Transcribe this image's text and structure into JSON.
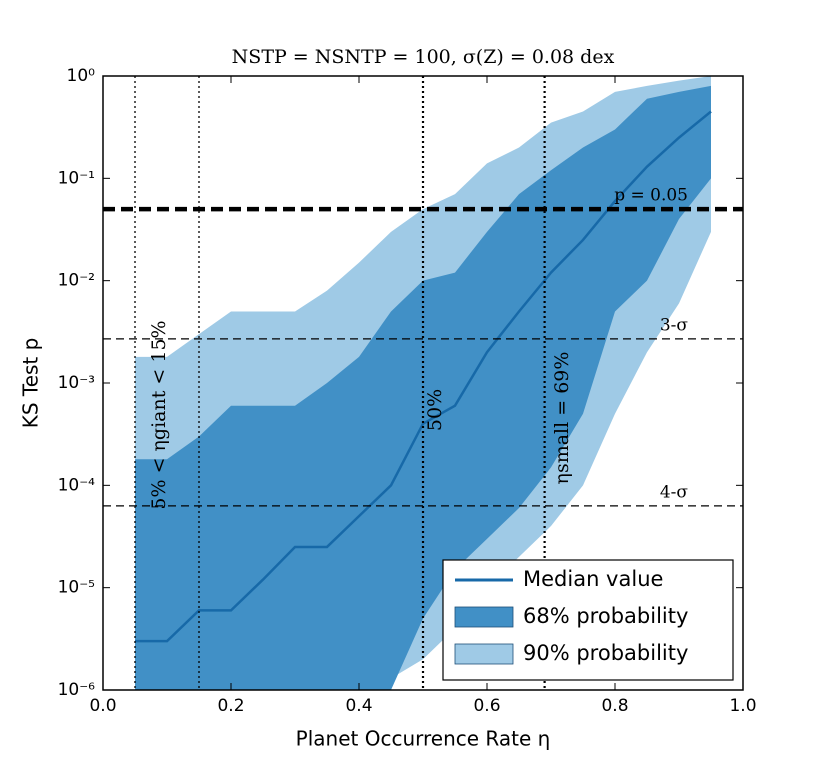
{
  "chart_data": {
    "type": "line",
    "title": "NSTP = NSNTP = 100, σ(Z) = 0.08 dex",
    "xlabel": "Planet Occurrence Rate η",
    "ylabel": "KS Test p",
    "log_y": true,
    "legend": "lower right",
    "xlim": [
      0,
      1
    ],
    "ylim": [
      1e-06,
      1
    ],
    "xticks": [
      {
        "value": 0,
        "label": "0.0"
      },
      0.2,
      0.4,
      0.6,
      0.8,
      {
        "value": 1,
        "label": "1.0"
      }
    ],
    "yticks": [
      {
        "value": 1e-06,
        "label": "10⁻⁶"
      },
      {
        "value": 1e-05,
        "label": "10⁻⁵"
      },
      {
        "value": 0.0001,
        "label": "10⁻⁴"
      },
      {
        "value": 0.001,
        "label": "10⁻³"
      },
      {
        "value": 0.01,
        "label": "10⁻²"
      },
      {
        "value": 0.1,
        "label": "10⁻¹"
      },
      {
        "value": 1,
        "label": "10⁰"
      }
    ],
    "x": [
      0.05,
      0.1,
      0.15,
      0.2,
      0.25,
      0.3,
      0.35,
      0.4,
      0.45,
      0.5,
      0.55,
      0.6,
      0.65,
      0.7,
      0.75,
      0.8,
      0.85,
      0.9,
      0.95
    ],
    "bands": [
      {
        "name": "90% probability",
        "color": "#9fcae6",
        "upper": [
          0.0018,
          0.0018,
          0.003,
          0.005,
          0.005,
          0.005,
          0.008,
          0.015,
          0.03,
          0.05,
          0.07,
          0.14,
          0.2,
          0.35,
          0.45,
          0.7,
          0.8,
          0.9,
          1
        ],
        "lower": [
          1e-06,
          1e-06,
          1e-06,
          1e-06,
          1e-06,
          1e-06,
          1e-06,
          1.3e-06,
          1.3e-06,
          2e-06,
          4e-06,
          1e-05,
          2e-05,
          4e-05,
          0.0001,
          0.0005,
          0.002,
          0.006,
          0.03
        ]
      },
      {
        "name": "68% probability",
        "color": "#4190c6",
        "upper": [
          0.00018,
          0.00018,
          0.0003,
          0.0006,
          0.0006,
          0.0006,
          0.001,
          0.0018,
          0.005,
          0.01,
          0.012,
          0.03,
          0.07,
          0.12,
          0.2,
          0.3,
          0.6,
          0.7,
          0.8
        ],
        "lower": [
          1e-06,
          1e-06,
          1e-06,
          1e-06,
          1e-06,
          1e-06,
          1e-06,
          1e-06,
          1e-06,
          5e-06,
          1.5e-05,
          3e-05,
          6e-05,
          0.00015,
          0.0005,
          0.005,
          0.01,
          0.04,
          0.1
        ]
      }
    ],
    "series": [
      {
        "name": "Median value",
        "color": "#1769a8",
        "values": [
          3e-06,
          3e-06,
          6e-06,
          6e-06,
          1.2e-05,
          2.5e-05,
          2.5e-05,
          5e-05,
          0.0001,
          0.0004,
          0.0006,
          0.002,
          0.005,
          0.012,
          0.025,
          0.06,
          0.13,
          0.25,
          0.45
        ]
      }
    ],
    "hlines": [
      {
        "value": 0.05,
        "label": "p = 0.05",
        "style": "thick"
      },
      {
        "value": 0.0027,
        "label": "3-σ",
        "style": "thin"
      },
      {
        "value": 6.3e-05,
        "label": "4-σ",
        "style": "thin"
      }
    ],
    "vlines": [
      0.05,
      0.15,
      0.5,
      0.69
    ],
    "annotations": [
      "5% < ηgiant < 15%",
      "50%",
      "ηsmall = 69%"
    ]
  }
}
